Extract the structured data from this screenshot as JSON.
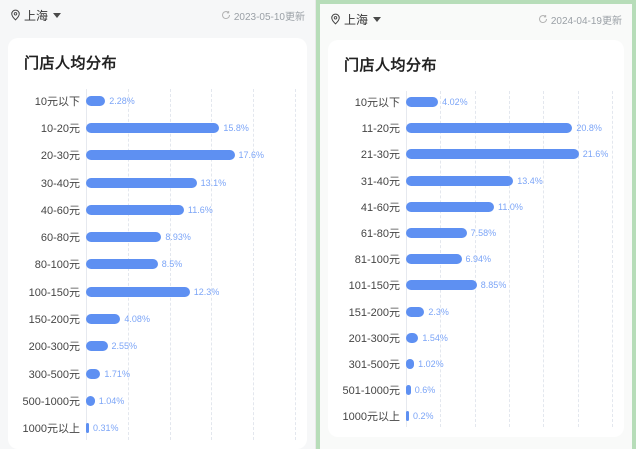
{
  "colors": {
    "bar": "#5e90f2",
    "value_label": "#7ca5f7",
    "selected_border": "#b7ddb9"
  },
  "panels": [
    {
      "location": "上海",
      "updated": "2023-05-10更新",
      "chart_title": "门店人均分布"
    },
    {
      "location": "上海",
      "updated": "2024-04-19更新",
      "chart_title": "门店人均分布"
    }
  ],
  "chart_data": [
    {
      "type": "bar",
      "orientation": "horizontal",
      "title": "门店人均分布",
      "categories": [
        "10元以下",
        "10-20元",
        "20-30元",
        "30-40元",
        "40-60元",
        "60-80元",
        "80-100元",
        "100-150元",
        "150-200元",
        "200-300元",
        "300-500元",
        "500-1000元",
        "1000元以上"
      ],
      "values": [
        2.28,
        15.8,
        17.6,
        13.1,
        11.6,
        8.93,
        8.5,
        12.3,
        4.08,
        2.55,
        1.71,
        1.04,
        0.31
      ],
      "value_labels": [
        "2.28%",
        "15.8%",
        "17.6%",
        "13.1%",
        "11.6%",
        "8.93%",
        "8.5%",
        "12.3%",
        "4.08%",
        "2.55%",
        "1.71%",
        "1.04%",
        "0.31%"
      ],
      "xlim": [
        0,
        25
      ],
      "grid": "dashed-vertical",
      "grid_intervals": 5,
      "legend": "none"
    },
    {
      "type": "bar",
      "orientation": "horizontal",
      "title": "门店人均分布",
      "categories": [
        "10元以下",
        "11-20元",
        "21-30元",
        "31-40元",
        "41-60元",
        "61-80元",
        "81-100元",
        "101-150元",
        "151-200元",
        "201-300元",
        "301-500元",
        "501-1000元",
        "1000元以上"
      ],
      "values": [
        4.02,
        20.8,
        21.6,
        13.4,
        11.0,
        7.58,
        6.94,
        8.85,
        2.3,
        1.54,
        1.02,
        0.6,
        0.2
      ],
      "value_labels": [
        "4.02%",
        "20.8%",
        "21.6%",
        "13.4%",
        "11.0%",
        "7.58%",
        "6.94%",
        "8.85%",
        "2.3%",
        "1.54%",
        "1.02%",
        "0.6%",
        "0.2%"
      ],
      "xlim": [
        0,
        26
      ],
      "grid": "dashed-vertical",
      "grid_intervals": 6,
      "legend": "none"
    }
  ]
}
